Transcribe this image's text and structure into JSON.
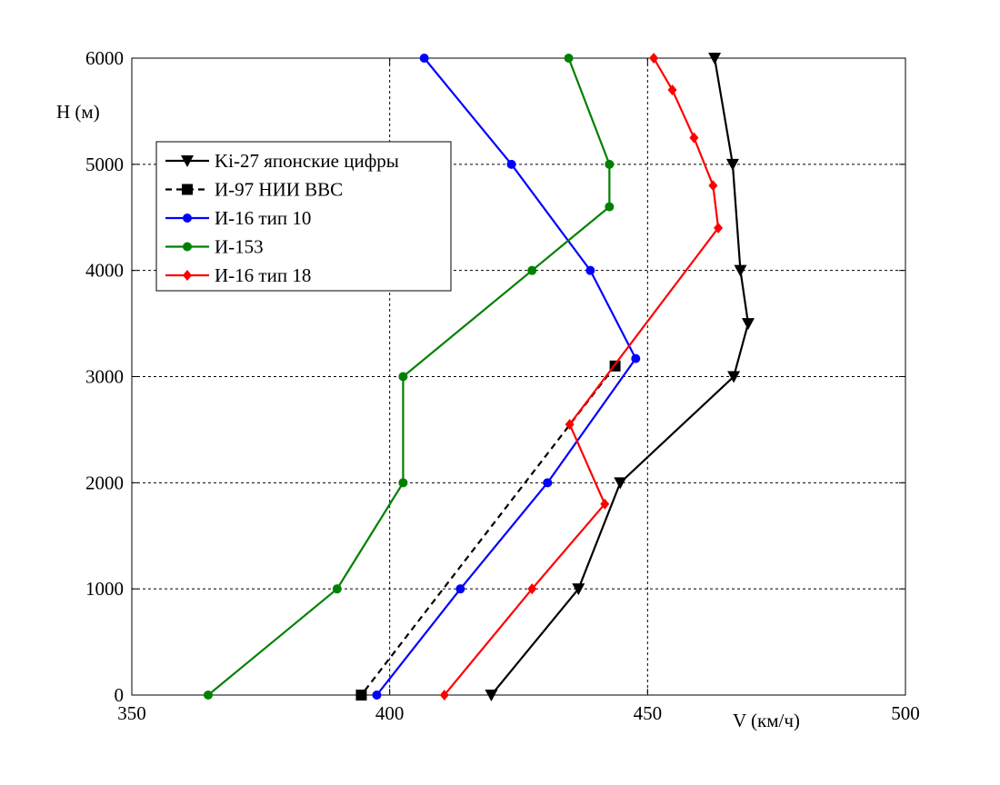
{
  "chart_data": {
    "type": "line",
    "title": "",
    "xlabel": "V (км/ч)",
    "ylabel": "H (м)",
    "xlim": [
      350,
      500
    ],
    "ylim": [
      0,
      6000
    ],
    "xticks": [
      350,
      400,
      450,
      500
    ],
    "yticks": [
      0,
      1000,
      2000,
      3000,
      4000,
      5000,
      6000
    ],
    "grid": true,
    "legend_position": "upper-left",
    "series": [
      {
        "name": "Ki-27 японские цифры",
        "color": "#000000",
        "marker": "triangle-down",
        "dash": false,
        "points": [
          [
            463,
            6000
          ],
          [
            466.5,
            5000
          ],
          [
            468,
            4000
          ],
          [
            469.5,
            3500
          ],
          [
            466.7,
            3000
          ],
          [
            444.7,
            2000
          ],
          [
            436.6,
            1000
          ],
          [
            419.7,
            0
          ]
        ]
      },
      {
        "name": "И-97 НИИ ВВС",
        "color": "#000000",
        "marker": "square",
        "dash": true,
        "points": [
          [
            443.7,
            3100
          ],
          [
            394.5,
            0
          ]
        ]
      },
      {
        "name": "И-16 тип 10",
        "color": "#0000ff",
        "marker": "circle",
        "dash": false,
        "points": [
          [
            406.7,
            6000
          ],
          [
            423.6,
            5000
          ],
          [
            438.9,
            4000
          ],
          [
            447.7,
            3170
          ],
          [
            430.6,
            2000
          ],
          [
            413.7,
            1000
          ],
          [
            397.5,
            0
          ]
        ]
      },
      {
        "name": "И-153",
        "color": "#008000",
        "marker": "circle",
        "dash": false,
        "points": [
          [
            434.7,
            6000
          ],
          [
            442.6,
            5000
          ],
          [
            442.6,
            4600
          ],
          [
            427.6,
            4000
          ],
          [
            402.6,
            3000
          ],
          [
            402.6,
            2000
          ],
          [
            389.8,
            1000
          ],
          [
            364.8,
            0
          ]
        ]
      },
      {
        "name": "И-16 тип 18",
        "color": "#ff0000",
        "marker": "diamond",
        "dash": false,
        "points": [
          [
            451.2,
            6000
          ],
          [
            454.8,
            5700
          ],
          [
            459,
            5250
          ],
          [
            462.7,
            4800
          ],
          [
            463.7,
            4400
          ],
          [
            434.9,
            2550
          ],
          [
            441.7,
            1800
          ],
          [
            427.6,
            1000
          ],
          [
            410.6,
            0
          ]
        ]
      }
    ]
  }
}
